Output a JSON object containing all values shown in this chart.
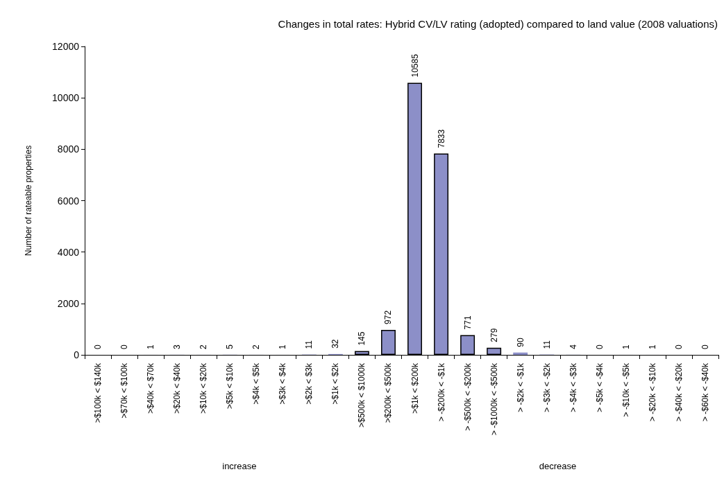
{
  "chart_data": {
    "type": "bar",
    "title": "Changes in total rates: Hybrid CV/LV rating (adopted) compared to land value (2008 valuations)",
    "ylabel": "Number of rateable properties",
    "categories": [
      ">$100k < $140k",
      ">$70k < $100k",
      ">$40k < $70k",
      ">$20k < $40k",
      ">$10k < $20k",
      ">$5k < $10k",
      ">$4k < $5k",
      ">$3k < $4k",
      ">$2k < $3k",
      ">$1k < $2k",
      ">$500k < $1000k",
      ">$200k < $500k",
      ">$1k < $200k",
      "> -$200k < -$1k",
      "> -$500k < -$200k",
      "> -$1000k < -$500k",
      "> -$2k < -$1k",
      "> -$3k < -$2k",
      "> -$4k < -$3k",
      "> -$5k < -$4k",
      "> -$10k < -$5k",
      "> -$20k < -$10k",
      "> -$40k < -$20k",
      "> -$60k < -$40k"
    ],
    "values": [
      0,
      0,
      1,
      3,
      2,
      5,
      2,
      1,
      11,
      32,
      145,
      972,
      10585,
      7833,
      771,
      279,
      90,
      11,
      4,
      0,
      1,
      1,
      0,
      0
    ],
    "color": "#8c8fc8",
    "ylim": [
      0,
      12000
    ],
    "yticks": [
      0,
      2000,
      4000,
      6000,
      8000,
      10000,
      12000
    ],
    "grid": false,
    "data_labels": true,
    "annotations": [
      "increase",
      "decrease"
    ]
  }
}
